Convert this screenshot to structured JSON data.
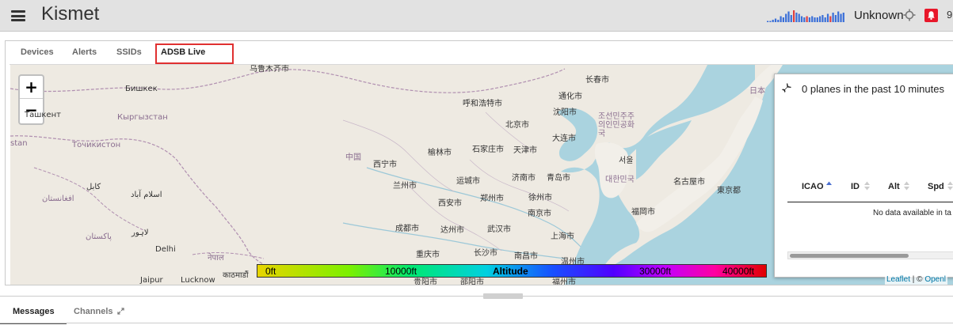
{
  "app": {
    "title": "Kismet"
  },
  "header": {
    "gps_status": "Unknown",
    "alert_count": "9",
    "sparkline_color": "#3a6fd8",
    "sparkline_accent": "#e04040"
  },
  "tabs": [
    {
      "label": "Devices",
      "active": false
    },
    {
      "label": "Alerts",
      "active": false
    },
    {
      "label": "SSIDs",
      "active": false
    },
    {
      "label": "ADSB Live",
      "active": true
    }
  ],
  "map": {
    "zoom_in": "+",
    "zoom_out": "−",
    "labels": {
      "urumqi": "乌鲁木齐市",
      "bishkek": "Бишкек",
      "kyrgyzstan": "Кыргызстан",
      "tashkent": "Ташкент",
      "tajikistan": "Точикистон",
      "stan": "stan",
      "kabul": "کابل",
      "islamabad": "اسلام آباد",
      "afghanistan": "افغانستان",
      "pakistan": "پاکستان",
      "lahore": "لاہور",
      "delhi": "Delhi",
      "jaipur": "Jaipur",
      "lucknow": "Lucknow",
      "nepal": "नेपाल",
      "kathmandu": "काठमाडौं",
      "china": "中国",
      "xining": "西宁市",
      "lanzhou": "兰州市",
      "hohhot": "呼和浩特市",
      "beijing": "北京市",
      "yulin": "榆林市",
      "shijiazhuang": "石家庄市",
      "tianjin": "天津市",
      "dalian": "大连市",
      "changchun": "长春市",
      "tonghua": "通化市",
      "shenyang": "沈阳市",
      "korea_n": "조선민주주의인민공화국",
      "seoul": "서울",
      "korea_s": "대한민국",
      "japan": "日本",
      "nagoya": "名古屋市",
      "tokyo": "東京都",
      "fukuoka": "福岡市",
      "taiyuan": "运城市",
      "zhengzhou": "郑州市",
      "jinan": "济南市",
      "qingdao": "青岛市",
      "xuzhou": "徐州市",
      "nanjing": "南京市",
      "xian": "西安市",
      "chengdu": "成都市",
      "dazhou": "达州市",
      "wuhan": "武汉市",
      "shanghai": "上海市",
      "chongqing": "重庆市",
      "changsha": "长沙市",
      "nanchang": "南昌市",
      "wenzhou": "温州市",
      "guizhou": "贵阳市",
      "shaoyang": "邵阳市",
      "fuzhou": "福州市"
    },
    "legend": {
      "min": "0ft",
      "mid1": "10000ft",
      "title": "Altitude",
      "mid2": "30000ft",
      "max": "40000ft"
    },
    "attribution": {
      "leaflet": "Leaflet",
      "separator": " | © ",
      "osm": "Openl"
    }
  },
  "planes_panel": {
    "summary": "0 planes in the past 10 minutes",
    "columns": [
      "ICAO",
      "ID",
      "Alt",
      "Spd"
    ],
    "empty_text": "No data available in ta"
  },
  "bottom_tabs": [
    {
      "label": "Messages",
      "active": true
    },
    {
      "label": "Channels",
      "active": false
    }
  ]
}
